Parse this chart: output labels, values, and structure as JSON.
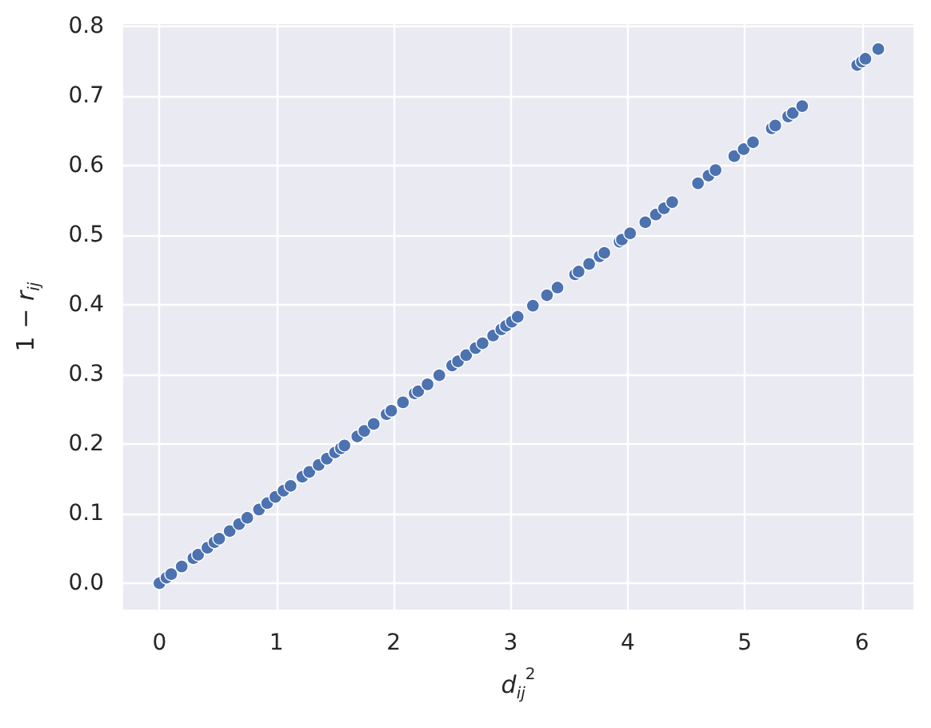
{
  "chart_data": {
    "type": "scatter",
    "xlabel": "d$_{ij}$$^{2}$",
    "ylabel": "1 − r$_{ij}$",
    "x": [
      0.0,
      0.06,
      0.1,
      0.19,
      0.29,
      0.33,
      0.41,
      0.47,
      0.51,
      0.6,
      0.68,
      0.75,
      0.85,
      0.92,
      0.99,
      1.06,
      1.12,
      1.22,
      1.28,
      1.36,
      1.43,
      1.5,
      1.55,
      1.58,
      1.69,
      1.75,
      1.83,
      1.94,
      1.98,
      2.08,
      2.18,
      2.21,
      2.29,
      2.39,
      2.5,
      2.55,
      2.62,
      2.7,
      2.76,
      2.85,
      2.92,
      2.96,
      3.01,
      3.06,
      3.19,
      3.31,
      3.4,
      3.55,
      3.58,
      3.67,
      3.76,
      3.8,
      3.93,
      3.95,
      4.02,
      4.15,
      4.24,
      4.31,
      4.38,
      4.6,
      4.69,
      4.75,
      4.91,
      4.99,
      5.07,
      5.23,
      5.26,
      5.37,
      5.41,
      5.49,
      5.96,
      6.0,
      6.03,
      6.14
    ],
    "values": [
      0,
      0.008,
      0.013,
      0.024,
      0.036,
      0.041,
      0.051,
      0.059,
      0.064,
      0.075,
      0.085,
      0.094,
      0.106,
      0.115,
      0.124,
      0.133,
      0.14,
      0.153,
      0.16,
      0.17,
      0.179,
      0.188,
      0.194,
      0.198,
      0.211,
      0.219,
      0.229,
      0.243,
      0.248,
      0.26,
      0.273,
      0.276,
      0.286,
      0.299,
      0.313,
      0.319,
      0.328,
      0.338,
      0.345,
      0.356,
      0.365,
      0.37,
      0.376,
      0.383,
      0.399,
      0.414,
      0.425,
      0.444,
      0.448,
      0.459,
      0.47,
      0.475,
      0.491,
      0.494,
      0.503,
      0.519,
      0.53,
      0.539,
      0.548,
      0.575,
      0.586,
      0.594,
      0.614,
      0.624,
      0.634,
      0.654,
      0.658,
      0.671,
      0.676,
      0.686,
      0.745,
      0.75,
      0.754,
      0.768
    ],
    "color": "#4c72b0",
    "marker": "circle",
    "xlim": [
      -0.31,
      6.44
    ],
    "ylim": [
      -0.038,
      0.804
    ],
    "xticks": [
      0,
      1,
      2,
      3,
      4,
      5,
      6
    ],
    "yticks": [
      {
        "value": 0,
        "label": "0.0"
      },
      {
        "value": 0.1,
        "label": "0.1"
      },
      {
        "value": 0.2,
        "label": "0.2"
      },
      {
        "value": 0.3,
        "label": "0.3"
      },
      {
        "value": 0.4,
        "label": "0.4"
      },
      {
        "value": 0.5,
        "label": "0.5"
      },
      {
        "value": 0.6,
        "label": "0.6"
      },
      {
        "value": 0.7,
        "label": "0.7"
      },
      {
        "value": 0.8,
        "label": "0.8"
      }
    ],
    "grid": true
  }
}
